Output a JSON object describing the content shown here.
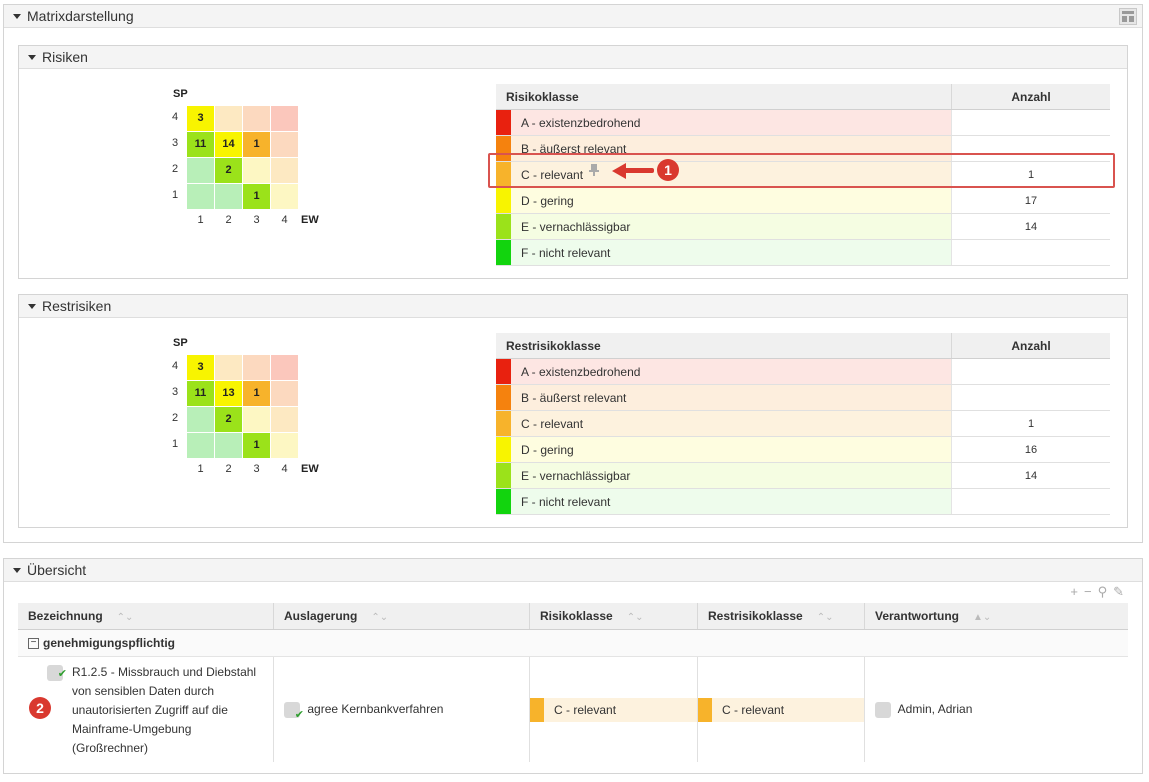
{
  "matrix_panel": {
    "title": "Matrixdarstellung",
    "icons": {
      "layout": "grid-layout-icon"
    }
  },
  "risiken": {
    "title": "Risiken",
    "matrix": {
      "y_axis": "SP",
      "x_axis": "EW",
      "y_labels": [
        "4",
        "3",
        "2",
        "1"
      ],
      "x_labels": [
        "1",
        "2",
        "3",
        "4"
      ],
      "rows": [
        [
          "3",
          "",
          "",
          ""
        ],
        [
          "11",
          "14",
          "1",
          ""
        ],
        [
          "",
          "2",
          "",
          ""
        ],
        [
          "",
          "",
          "1",
          ""
        ]
      ]
    },
    "table": {
      "col_class": "Risikoklasse",
      "col_count": "Anzahl",
      "rows": [
        {
          "label": "A - existenzbedrohend",
          "count": ""
        },
        {
          "label": "B - äußerst relevant",
          "count": ""
        },
        {
          "label": "C - relevant",
          "count": "1"
        },
        {
          "label": "D - gering",
          "count": "17"
        },
        {
          "label": "E - vernachlässigbar",
          "count": "14"
        },
        {
          "label": "F - nicht relevant",
          "count": ""
        }
      ]
    },
    "callout": "1"
  },
  "restrisiken": {
    "title": "Restrisiken",
    "matrix": {
      "y_axis": "SP",
      "x_axis": "EW",
      "y_labels": [
        "4",
        "3",
        "2",
        "1"
      ],
      "x_labels": [
        "1",
        "2",
        "3",
        "4"
      ],
      "rows": [
        [
          "3",
          "",
          "",
          ""
        ],
        [
          "11",
          "13",
          "1",
          ""
        ],
        [
          "",
          "2",
          "",
          ""
        ],
        [
          "",
          "",
          "1",
          ""
        ]
      ]
    },
    "table": {
      "col_class": "Restrisikoklasse",
      "col_count": "Anzahl",
      "rows": [
        {
          "label": "A - existenzbedrohend",
          "count": ""
        },
        {
          "label": "B - äußerst relevant",
          "count": ""
        },
        {
          "label": "C - relevant",
          "count": "1"
        },
        {
          "label": "D - gering",
          "count": "16"
        },
        {
          "label": "E - vernachlässigbar",
          "count": "14"
        },
        {
          "label": "F - nicht relevant",
          "count": ""
        }
      ]
    }
  },
  "uebersicht": {
    "title": "Übersicht",
    "columns": [
      "Bezeichnung",
      "Auslagerung",
      "Risikoklasse",
      "Restrisikoklasse",
      "Verantwortung"
    ],
    "group": "genehmigungspflichtig",
    "row": {
      "bezeichnung": "R1.2.5 - Missbrauch und Diebstahl von sensiblen Daten durch unautorisierten Zugriff auf die Mainframe-Umgebung (Großrechner)",
      "auslagerung": "agree Kernbankverfahren",
      "risikoklasse": "C - relevant",
      "restrisikoklasse": "C - relevant",
      "verantwortung": "Admin, Adrian"
    },
    "callout": "2"
  },
  "class_colors": [
    "#e8210f",
    "#f5820e",
    "#f7b32b",
    "#f8f400",
    "#9be21a",
    "#12d40e"
  ],
  "row_tints": [
    "#fde6e3",
    "#fdeedd",
    "#fdf2de",
    "#fefde0",
    "#f5fde2",
    "#eefcec"
  ],
  "matrix_colors": [
    [
      "#f8f400",
      "#fde9c2",
      "#fcd9bf",
      "#fbc7bc"
    ],
    [
      "#9be21a",
      "#f8f400",
      "#f7b32b",
      "#fcd9bf"
    ],
    [
      "#b8efb8",
      "#9be21a",
      "#fdf7c3",
      "#fde9c2"
    ],
    [
      "#b8efb8",
      "#b8efb8",
      "#9be21a",
      "#fdf7c3"
    ]
  ]
}
